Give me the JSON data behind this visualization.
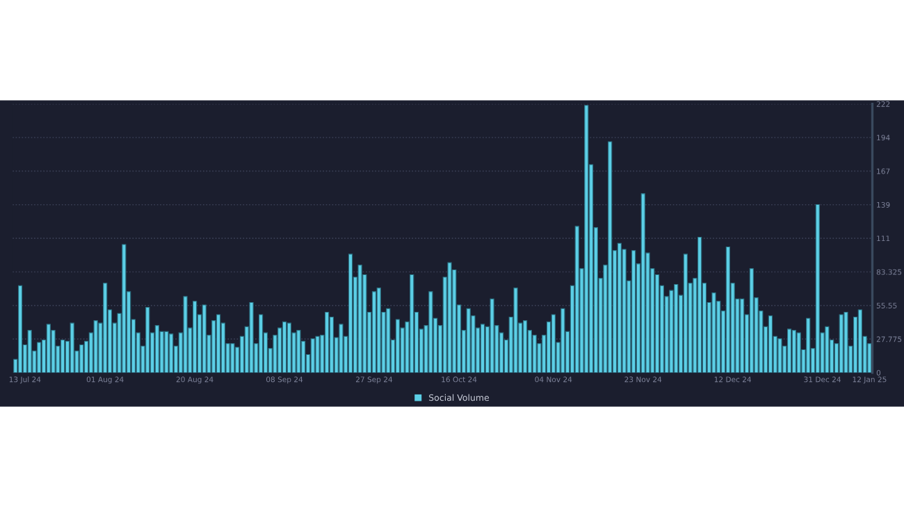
{
  "chart_data": {
    "type": "bar",
    "categories": [
      null,
      null,
      "13 Jul 24",
      null,
      null,
      null,
      null,
      null,
      null,
      null,
      null,
      null,
      null,
      null,
      null,
      null,
      null,
      null,
      null,
      "01 Aug 24",
      null,
      null,
      null,
      null,
      null,
      null,
      null,
      null,
      null,
      null,
      null,
      null,
      null,
      null,
      null,
      null,
      null,
      null,
      "20 Aug 24",
      null,
      null,
      null,
      null,
      null,
      null,
      null,
      null,
      null,
      null,
      null,
      null,
      null,
      null,
      null,
      null,
      null,
      null,
      "08 Sep 24",
      null,
      null,
      null,
      null,
      null,
      null,
      null,
      null,
      null,
      null,
      null,
      null,
      null,
      null,
      null,
      null,
      null,
      null,
      "27 Sep 24",
      null,
      null,
      null,
      null,
      null,
      null,
      null,
      null,
      null,
      null,
      null,
      null,
      null,
      null,
      null,
      null,
      null,
      "16 Oct 24",
      null,
      null,
      null,
      null,
      null,
      null,
      null,
      null,
      null,
      null,
      null,
      null,
      null,
      null,
      null,
      null,
      null,
      null,
      null,
      "04 Nov 24",
      null,
      null,
      null,
      null,
      null,
      null,
      null,
      null,
      null,
      null,
      null,
      null,
      null,
      null,
      null,
      null,
      null,
      null,
      "23 Nov 24",
      null,
      null,
      null,
      null,
      null,
      null,
      null,
      null,
      null,
      null,
      null,
      null,
      null,
      null,
      null,
      null,
      null,
      null,
      "12 Dec 24",
      null,
      null,
      null,
      null,
      null,
      null,
      null,
      null,
      null,
      null,
      null,
      null,
      null,
      null,
      null,
      null,
      null,
      null,
      "31 Dec 24",
      null,
      null,
      null,
      null,
      null,
      null,
      null,
      null,
      null,
      "12 Jan 25"
    ],
    "series": [
      {
        "name": "Social Volume",
        "color": "#5ccfe6",
        "values": [
          11,
          72,
          23,
          35,
          18,
          25,
          27,
          40,
          35,
          22,
          27,
          26,
          41,
          18,
          23,
          26,
          33,
          43,
          41,
          74,
          52,
          41,
          49,
          106,
          67,
          44,
          33,
          22,
          54,
          33,
          39,
          34,
          34,
          32,
          22,
          33,
          63,
          37,
          59,
          48,
          56,
          31,
          43,
          48,
          41,
          24,
          24,
          21,
          30,
          38,
          58,
          24,
          48,
          33,
          20,
          31,
          37,
          42,
          41,
          33,
          35,
          26,
          15,
          28,
          30,
          31,
          50,
          46,
          29,
          40,
          30,
          98,
          79,
          89,
          81,
          50,
          67,
          70,
          50,
          53,
          27,
          44,
          37,
          42,
          81,
          50,
          36,
          39,
          67,
          45,
          39,
          79,
          91,
          85,
          56,
          35,
          53,
          47,
          37,
          40,
          38,
          61,
          39,
          33,
          27,
          46,
          70,
          41,
          43,
          35,
          31,
          24,
          31,
          42,
          48,
          25,
          53,
          34,
          72,
          121,
          86,
          221,
          172,
          120,
          78,
          89,
          191,
          101,
          107,
          102,
          76,
          101,
          90,
          148,
          99,
          86,
          81,
          72,
          63,
          68,
          73,
          64,
          98,
          74,
          78,
          112,
          74,
          58,
          66,
          59,
          51,
          104,
          74,
          61,
          61,
          48,
          86,
          62,
          51,
          38,
          47,
          30,
          28,
          22,
          36,
          35,
          33,
          19,
          45,
          20,
          139,
          33,
          38,
          27,
          24,
          48,
          50,
          22,
          46,
          52,
          30,
          24
        ]
      }
    ],
    "ylim": [
      0,
      222.2
    ],
    "yticks": [
      0,
      27.775,
      55.55,
      83.325,
      {
        "value": 111.1,
        "label": "111"
      },
      {
        "value": 138.875,
        "label": "139"
      },
      {
        "value": 166.65,
        "label": "167"
      },
      {
        "value": 194.425,
        "label": "194"
      },
      {
        "value": 222.2,
        "label": "222"
      }
    ],
    "grid": "y",
    "legend": "bottom"
  }
}
